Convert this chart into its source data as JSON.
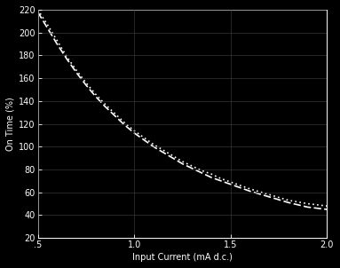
{
  "background_color": "#000000",
  "grid_color": "#444444",
  "line_color": "#ffffff",
  "text_color": "#ffffff",
  "xlabel": "Input Current (mA d.c.)",
  "ylabel": "On Time (%)",
  "xlim": [
    0.5,
    2.0
  ],
  "ylim": [
    20,
    220
  ],
  "xticks": [
    0.5,
    1.0,
    1.5,
    2.0
  ],
  "xtick_labels": [
    ".5",
    "1.0",
    "1.5",
    "2.0"
  ],
  "yticks": [
    20,
    40,
    60,
    80,
    100,
    120,
    140,
    160,
    180,
    200,
    220
  ],
  "curve1_x": [
    0.5,
    0.55,
    0.6,
    0.65,
    0.7,
    0.75,
    0.8,
    0.85,
    0.9,
    0.95,
    1.0,
    1.05,
    1.1,
    1.15,
    1.2,
    1.25,
    1.3,
    1.35,
    1.4,
    1.45,
    1.5,
    1.6,
    1.7,
    1.8,
    1.9,
    2.0
  ],
  "curve1_y": [
    220,
    207,
    193,
    179,
    167,
    156,
    146,
    137,
    129,
    121,
    114,
    108,
    102,
    97,
    92,
    87,
    83,
    79,
    76,
    72,
    69,
    63,
    58,
    53,
    50,
    48
  ],
  "curve2_x": [
    0.5,
    0.55,
    0.6,
    0.65,
    0.7,
    0.75,
    0.8,
    0.85,
    0.9,
    0.95,
    1.0,
    1.05,
    1.1,
    1.15,
    1.2,
    1.25,
    1.3,
    1.35,
    1.4,
    1.45,
    1.5,
    1.6,
    1.7,
    1.8,
    1.9,
    2.0
  ],
  "curve2_y": [
    218,
    204,
    190,
    177,
    165,
    154,
    144,
    135,
    127,
    119,
    112,
    106,
    100,
    95,
    90,
    85,
    81,
    77,
    73,
    70,
    67,
    61,
    56,
    51,
    47,
    45
  ],
  "linestyle1": "dotted",
  "linestyle2": "dashed",
  "linewidth": 1.2
}
